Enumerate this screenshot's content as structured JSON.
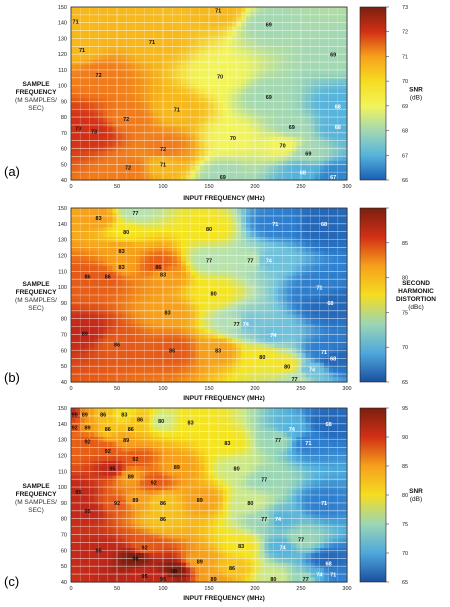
{
  "panels": [
    {
      "letter": "(a)",
      "cb_title": [
        "SNR",
        "(dB)"
      ],
      "cb_ticks": [
        "73",
        "72",
        "71",
        "70",
        "69",
        "68",
        "67",
        "66"
      ],
      "cb_colors": [
        "#7a1f0f",
        "#d23016",
        "#f6a01c",
        "#f5dd20",
        "#f2f45a",
        "#a3d8b3",
        "#56b3dc",
        "#1a5fb4"
      ],
      "x_title": "INPUT FREQUENCY (MHz)"
    },
    {
      "letter": "(b)",
      "cb_title": [
        "SECOND",
        "HARMONIC",
        "DISTORTION",
        "(dBc)"
      ],
      "cb_ticks": [
        "",
        "85",
        "80",
        "75",
        "70",
        "65"
      ],
      "cb_colors": [
        "#7a1f0f",
        "#d23016",
        "#f6a01c",
        "#f5dd20",
        "#9bd6b5",
        "#4fa8dc",
        "#1a4fa0"
      ],
      "x_title": "INPUT FREQUENCY (MHz)"
    },
    {
      "letter": "(c)",
      "cb_title": [
        "SNR",
        "(dB)"
      ],
      "cb_ticks": [
        "95",
        "90",
        "85",
        "80",
        "75",
        "70",
        "65"
      ],
      "cb_colors": [
        "#7a1f0f",
        "#d23016",
        "#f6a01c",
        "#f5dd20",
        "#9bd6b5",
        "#4fa8dc",
        "#1a4fa0"
      ],
      "x_title": "INPUT FREQUENCY (MHz)"
    }
  ],
  "y_label": [
    "SAMPLE",
    "FREQUENCY"
  ],
  "y_label_sub": [
    "(M SAMPLES/",
    "SEC)"
  ],
  "chart_data": [
    {
      "type": "heatmap",
      "title": "",
      "xlabel": "INPUT FREQUENCY (MHz)",
      "ylabel": "SAMPLE FREQUENCY (M SAMPLES/SEC)",
      "colorbar_label": "SNR (dB)",
      "colorbar_ticks": [
        73,
        72,
        71,
        70,
        69,
        68,
        67,
        66
      ],
      "x_ticks": [
        0,
        50,
        100,
        150,
        200,
        250,
        300
      ],
      "y_ticks": [
        40,
        50,
        60,
        70,
        80,
        90,
        100,
        110,
        120,
        130,
        140,
        150
      ],
      "xlim": [
        0,
        300
      ],
      "ylim": [
        40,
        150
      ],
      "contour_labels": [
        {
          "x": 5,
          "y": 141,
          "v": 71
        },
        {
          "x": 12,
          "y": 123,
          "v": 71
        },
        {
          "x": 30,
          "y": 107,
          "v": 72
        },
        {
          "x": 8,
          "y": 73,
          "v": 73
        },
        {
          "x": 25,
          "y": 71,
          "v": 73
        },
        {
          "x": 60,
          "y": 79,
          "v": 72
        },
        {
          "x": 62,
          "y": 48,
          "v": 72
        },
        {
          "x": 88,
          "y": 128,
          "v": 71
        },
        {
          "x": 115,
          "y": 85,
          "v": 71
        },
        {
          "x": 100,
          "y": 60,
          "v": 72
        },
        {
          "x": 100,
          "y": 50,
          "v": 71
        },
        {
          "x": 160,
          "y": 148,
          "v": 71
        },
        {
          "x": 215,
          "y": 139,
          "v": 69
        },
        {
          "x": 285,
          "y": 120,
          "v": 69
        },
        {
          "x": 162,
          "y": 106,
          "v": 70
        },
        {
          "x": 215,
          "y": 93,
          "v": 69
        },
        {
          "x": 290,
          "y": 87,
          "v": 68
        },
        {
          "x": 176,
          "y": 67,
          "v": 70
        },
        {
          "x": 240,
          "y": 74,
          "v": 69
        },
        {
          "x": 290,
          "y": 74,
          "v": 68
        },
        {
          "x": 230,
          "y": 62,
          "v": 70
        },
        {
          "x": 258,
          "y": 57,
          "v": 69
        },
        {
          "x": 252,
          "y": 45,
          "v": 68
        },
        {
          "x": 285,
          "y": 42,
          "v": 67
        },
        {
          "x": 165,
          "y": 42,
          "v": 69
        }
      ]
    },
    {
      "type": "heatmap",
      "title": "",
      "xlabel": "INPUT FREQUENCY (MHz)",
      "ylabel": "SAMPLE FREQUENCY (M SAMPLES/SEC)",
      "colorbar_label": "SECOND HARMONIC DISTORTION (dBc)",
      "colorbar_ticks": [
        85,
        80,
        75,
        70,
        65
      ],
      "x_ticks": [
        0,
        50,
        100,
        150,
        200,
        250,
        300
      ],
      "y_ticks": [
        40,
        50,
        60,
        70,
        80,
        90,
        100,
        110,
        120,
        130,
        140,
        150
      ],
      "xlim": [
        0,
        300
      ],
      "ylim": [
        40,
        150
      ],
      "contour_labels": [
        {
          "x": 30,
          "y": 144,
          "v": 83
        },
        {
          "x": 70,
          "y": 147,
          "v": 77
        },
        {
          "x": 60,
          "y": 135,
          "v": 80
        },
        {
          "x": 55,
          "y": 123,
          "v": 83
        },
        {
          "x": 55,
          "y": 113,
          "v": 83
        },
        {
          "x": 95,
          "y": 113,
          "v": 86
        },
        {
          "x": 100,
          "y": 108,
          "v": 83
        },
        {
          "x": 18,
          "y": 107,
          "v": 86
        },
        {
          "x": 40,
          "y": 107,
          "v": 86
        },
        {
          "x": 15,
          "y": 71,
          "v": 89
        },
        {
          "x": 50,
          "y": 64,
          "v": 86
        },
        {
          "x": 105,
          "y": 84,
          "v": 83
        },
        {
          "x": 110,
          "y": 60,
          "v": 86
        },
        {
          "x": 160,
          "y": 60,
          "v": 83
        },
        {
          "x": 150,
          "y": 137,
          "v": 80
        },
        {
          "x": 150,
          "y": 117,
          "v": 77
        },
        {
          "x": 195,
          "y": 117,
          "v": 77
        },
        {
          "x": 155,
          "y": 96,
          "v": 80
        },
        {
          "x": 180,
          "y": 77,
          "v": 77
        },
        {
          "x": 190,
          "y": 77,
          "v": 74
        },
        {
          "x": 215,
          "y": 117,
          "v": 74
        },
        {
          "x": 220,
          "y": 70,
          "v": 74
        },
        {
          "x": 208,
          "y": 56,
          "v": 80
        },
        {
          "x": 235,
          "y": 50,
          "v": 80
        },
        {
          "x": 243,
          "y": 42,
          "v": 77
        },
        {
          "x": 222,
          "y": 140,
          "v": 71
        },
        {
          "x": 275,
          "y": 140,
          "v": 68
        },
        {
          "x": 270,
          "y": 100,
          "v": 71
        },
        {
          "x": 282,
          "y": 90,
          "v": 68
        },
        {
          "x": 275,
          "y": 59,
          "v": 71
        },
        {
          "x": 285,
          "y": 55,
          "v": 68
        },
        {
          "x": 262,
          "y": 48,
          "v": 74
        }
      ]
    },
    {
      "type": "heatmap",
      "title": "",
      "xlabel": "INPUT FREQUENCY (MHz)",
      "ylabel": "SAMPLE FREQUENCY (M SAMPLES/SEC)",
      "colorbar_label": "SNR (dB)",
      "colorbar_ticks": [
        95,
        90,
        85,
        80,
        75,
        70,
        65
      ],
      "x_ticks": [
        0,
        50,
        100,
        150,
        200,
        250,
        300
      ],
      "y_ticks": [
        40,
        50,
        60,
        70,
        80,
        90,
        100,
        110,
        120,
        130,
        140,
        150
      ],
      "xlim": [
        0,
        300
      ],
      "ylim": [
        40,
        150
      ],
      "contour_labels": [
        {
          "x": 4,
          "y": 146,
          "v": 95
        },
        {
          "x": 15,
          "y": 146,
          "v": 89
        },
        {
          "x": 35,
          "y": 146,
          "v": 86
        },
        {
          "x": 58,
          "y": 146,
          "v": 83
        },
        {
          "x": 4,
          "y": 138,
          "v": 92
        },
        {
          "x": 18,
          "y": 138,
          "v": 89
        },
        {
          "x": 40,
          "y": 137,
          "v": 86
        },
        {
          "x": 65,
          "y": 137,
          "v": 86
        },
        {
          "x": 75,
          "y": 143,
          "v": 86
        },
        {
          "x": 60,
          "y": 130,
          "v": 89
        },
        {
          "x": 18,
          "y": 129,
          "v": 92
        },
        {
          "x": 40,
          "y": 123,
          "v": 92
        },
        {
          "x": 70,
          "y": 118,
          "v": 92
        },
        {
          "x": 45,
          "y": 112,
          "v": 95
        },
        {
          "x": 65,
          "y": 107,
          "v": 89
        },
        {
          "x": 90,
          "y": 103,
          "v": 92
        },
        {
          "x": 115,
          "y": 113,
          "v": 89
        },
        {
          "x": 8,
          "y": 97,
          "v": 95
        },
        {
          "x": 18,
          "y": 85,
          "v": 95
        },
        {
          "x": 50,
          "y": 90,
          "v": 92
        },
        {
          "x": 70,
          "y": 92,
          "v": 89
        },
        {
          "x": 100,
          "y": 90,
          "v": 86
        },
        {
          "x": 100,
          "y": 80,
          "v": 86
        },
        {
          "x": 140,
          "y": 92,
          "v": 89
        },
        {
          "x": 98,
          "y": 142,
          "v": 80
        },
        {
          "x": 130,
          "y": 141,
          "v": 83
        },
        {
          "x": 170,
          "y": 128,
          "v": 83
        },
        {
          "x": 180,
          "y": 112,
          "v": 80
        },
        {
          "x": 210,
          "y": 105,
          "v": 77
        },
        {
          "x": 195,
          "y": 90,
          "v": 80
        },
        {
          "x": 210,
          "y": 80,
          "v": 77
        },
        {
          "x": 225,
          "y": 80,
          "v": 74
        },
        {
          "x": 225,
          "y": 130,
          "v": 77
        },
        {
          "x": 240,
          "y": 137,
          "v": 74
        },
        {
          "x": 258,
          "y": 128,
          "v": 71
        },
        {
          "x": 280,
          "y": 140,
          "v": 68
        },
        {
          "x": 275,
          "y": 90,
          "v": 71
        },
        {
          "x": 250,
          "y": 67,
          "v": 77
        },
        {
          "x": 230,
          "y": 62,
          "v": 74
        },
        {
          "x": 220,
          "y": 42,
          "v": 80
        },
        {
          "x": 255,
          "y": 42,
          "v": 77
        },
        {
          "x": 270,
          "y": 45,
          "v": 74
        },
        {
          "x": 285,
          "y": 45,
          "v": 71
        },
        {
          "x": 280,
          "y": 52,
          "v": 68
        },
        {
          "x": 140,
          "y": 53,
          "v": 89
        },
        {
          "x": 175,
          "y": 49,
          "v": 86
        },
        {
          "x": 185,
          "y": 63,
          "v": 83
        },
        {
          "x": 155,
          "y": 42,
          "v": 89
        },
        {
          "x": 80,
          "y": 62,
          "v": 92
        },
        {
          "x": 112,
          "y": 47,
          "v": 98
        },
        {
          "x": 100,
          "y": 42,
          "v": 95
        },
        {
          "x": 30,
          "y": 60,
          "v": 95
        },
        {
          "x": 70,
          "y": 55,
          "v": 98
        },
        {
          "x": 80,
          "y": 44,
          "v": 95
        }
      ]
    }
  ]
}
